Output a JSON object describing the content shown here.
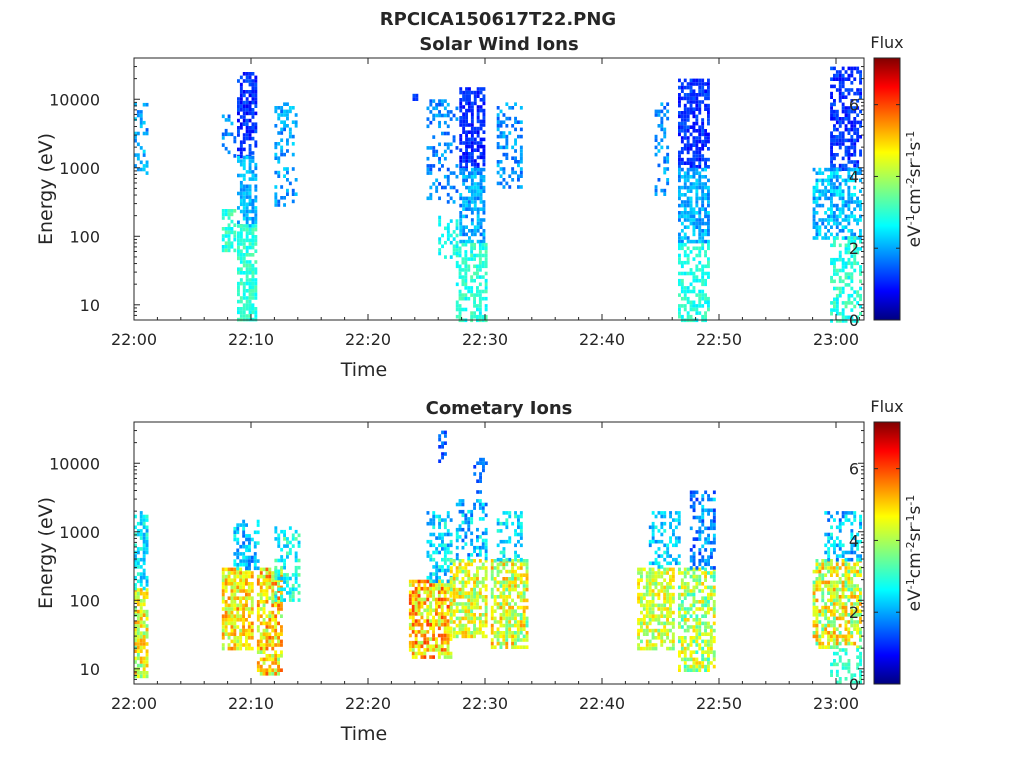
{
  "figure_title": "RPCICA150617T22.PNG",
  "colors": {
    "axis": "#262626",
    "background": "#ffffff"
  },
  "chart_data": [
    {
      "type": "heatmap",
      "title": "Solar Wind Ions",
      "xlabel": "Time",
      "ylabel": "Energy (eV)",
      "x_ticks": [
        "22:00",
        "22:10",
        "22:20",
        "22:30",
        "22:40",
        "22:50",
        "23:00"
      ],
      "xlim_minutes": [
        0,
        62
      ],
      "y_scale": "log",
      "ylim": [
        6,
        40000
      ],
      "y_ticks": [
        10,
        100,
        1000,
        10000
      ],
      "y_tick_labels": [
        "10",
        "100",
        "1000",
        "10000"
      ],
      "colorbar": {
        "label": "Flux",
        "unit": "eV-1cm-2sr-1s-1",
        "range": [
          0,
          7.3
        ],
        "ticks": [
          "0",
          "2",
          "4",
          "6"
        ],
        "colormap": "jet"
      },
      "grid": false,
      "clusters": [
        {
          "t": [
            0.0,
            1.0
          ],
          "e": [
            800,
            10000
          ],
          "v": [
            1.6,
            2.6
          ],
          "density": 0.35
        },
        {
          "t": [
            7.5,
            8.5
          ],
          "e": [
            60,
            250
          ],
          "v": [
            2.6,
            3.5
          ],
          "density": 0.7
        },
        {
          "t": [
            7.5,
            8.5
          ],
          "e": [
            1500,
            6000
          ],
          "v": [
            1.5,
            2.3
          ],
          "density": 0.3
        },
        {
          "t": [
            8.8,
            10.5
          ],
          "e": [
            1500,
            25000
          ],
          "v": [
            0.8,
            1.6
          ],
          "density": 0.65
        },
        {
          "t": [
            8.8,
            10.5
          ],
          "e": [
            150,
            1500
          ],
          "v": [
            1.8,
            2.6
          ],
          "density": 0.6
        },
        {
          "t": [
            8.8,
            10.5
          ],
          "e": [
            6,
            150
          ],
          "v": [
            2.7,
            3.4
          ],
          "density": 0.75
        },
        {
          "t": [
            12.0,
            13.8
          ],
          "e": [
            300,
            9000
          ],
          "v": [
            1.6,
            2.5
          ],
          "density": 0.35
        },
        {
          "t": [
            23.8,
            24.2
          ],
          "e": [
            10000,
            12000
          ],
          "v": [
            1.2,
            1.6
          ],
          "density": 0.8
        },
        {
          "t": [
            25.0,
            27.5
          ],
          "e": [
            300,
            10000
          ],
          "v": [
            1.4,
            2.3
          ],
          "density": 0.3
        },
        {
          "t": [
            27.8,
            30.0
          ],
          "e": [
            1000,
            15000
          ],
          "v": [
            0.8,
            1.5
          ],
          "density": 0.7
        },
        {
          "t": [
            27.8,
            30.0
          ],
          "e": [
            80,
            1000
          ],
          "v": [
            1.6,
            2.5
          ],
          "density": 0.7
        },
        {
          "t": [
            27.5,
            30.0
          ],
          "e": [
            6,
            80
          ],
          "v": [
            2.6,
            3.4
          ],
          "density": 0.6
        },
        {
          "t": [
            26.0,
            27.5
          ],
          "e": [
            50,
            200
          ],
          "v": [
            2.4,
            3.2
          ],
          "density": 0.4
        },
        {
          "t": [
            31.0,
            33.0
          ],
          "e": [
            500,
            9000
          ],
          "v": [
            1.5,
            2.4
          ],
          "density": 0.35
        },
        {
          "t": [
            44.5,
            45.5
          ],
          "e": [
            400,
            9000
          ],
          "v": [
            1.5,
            2.4
          ],
          "density": 0.35
        },
        {
          "t": [
            46.5,
            49.0
          ],
          "e": [
            1000,
            20000
          ],
          "v": [
            0.9,
            1.6
          ],
          "density": 0.7
        },
        {
          "t": [
            46.5,
            49.0
          ],
          "e": [
            80,
            1000
          ],
          "v": [
            1.7,
            2.6
          ],
          "density": 0.65
        },
        {
          "t": [
            46.5,
            49.0
          ],
          "e": [
            6,
            80
          ],
          "v": [
            2.6,
            3.3
          ],
          "density": 0.55
        },
        {
          "t": [
            59.5,
            62.0
          ],
          "e": [
            1000,
            30000
          ],
          "v": [
            0.9,
            1.6
          ],
          "density": 0.6
        },
        {
          "t": [
            58.0,
            62.0
          ],
          "e": [
            100,
            1000
          ],
          "v": [
            1.7,
            2.8
          ],
          "density": 0.55
        },
        {
          "t": [
            59.5,
            62.0
          ],
          "e": [
            6,
            100
          ],
          "v": [
            2.6,
            3.4
          ],
          "density": 0.5
        }
      ]
    },
    {
      "type": "heatmap",
      "title": "Cometary Ions",
      "xlabel": "Time",
      "ylabel": "Energy (eV)",
      "x_ticks": [
        "22:00",
        "22:10",
        "22:20",
        "22:30",
        "22:40",
        "22:50",
        "23:00"
      ],
      "xlim_minutes": [
        0,
        62
      ],
      "y_scale": "log",
      "ylim": [
        6,
        40000
      ],
      "y_ticks": [
        10,
        100,
        1000,
        10000
      ],
      "y_tick_labels": [
        "10",
        "100",
        "1000",
        "10000"
      ],
      "colorbar": {
        "label": "Flux",
        "unit": "eV-1cm-2sr-1s-1",
        "range": [
          0,
          7.3
        ],
        "ticks": [
          "0",
          "2",
          "4",
          "6"
        ],
        "colormap": "jet"
      },
      "grid": false,
      "clusters": [
        {
          "t": [
            0.0,
            1.2
          ],
          "e": [
            8,
            150
          ],
          "v": [
            3.4,
            5.4
          ],
          "density": 0.8
        },
        {
          "t": [
            0.0,
            1.2
          ],
          "e": [
            150,
            2000
          ],
          "v": [
            2.0,
            3.2
          ],
          "density": 0.5
        },
        {
          "t": [
            7.5,
            10.0
          ],
          "e": [
            20,
            300
          ],
          "v": [
            3.8,
            5.6
          ],
          "density": 0.75
        },
        {
          "t": [
            8.5,
            10.5
          ],
          "e": [
            300,
            1500
          ],
          "v": [
            1.6,
            3.0
          ],
          "density": 0.5
        },
        {
          "t": [
            10.5,
            12.5
          ],
          "e": [
            8,
            300
          ],
          "v": [
            3.6,
            5.8
          ],
          "density": 0.75
        },
        {
          "t": [
            12.0,
            14.0
          ],
          "e": [
            100,
            1200
          ],
          "v": [
            2.2,
            3.6
          ],
          "density": 0.5
        },
        {
          "t": [
            23.5,
            27.0
          ],
          "e": [
            15,
            200
          ],
          "v": [
            3.8,
            6.0
          ],
          "density": 0.75
        },
        {
          "t": [
            25.0,
            27.0
          ],
          "e": [
            200,
            2000
          ],
          "v": [
            1.8,
            3.2
          ],
          "density": 0.5
        },
        {
          "t": [
            27.0,
            30.0
          ],
          "e": [
            30,
            400
          ],
          "v": [
            3.4,
            5.2
          ],
          "density": 0.7
        },
        {
          "t": [
            27.5,
            30.0
          ],
          "e": [
            400,
            3000
          ],
          "v": [
            1.6,
            3.0
          ],
          "density": 0.45
        },
        {
          "t": [
            26.0,
            26.5
          ],
          "e": [
            10000,
            30000
          ],
          "v": [
            1.2,
            2.0
          ],
          "density": 0.4
        },
        {
          "t": [
            29.0,
            30.0
          ],
          "e": [
            4000,
            12000
          ],
          "v": [
            1.2,
            2.0
          ],
          "density": 0.35
        },
        {
          "t": [
            30.5,
            33.5
          ],
          "e": [
            20,
            400
          ],
          "v": [
            3.2,
            5.4
          ],
          "density": 0.7
        },
        {
          "t": [
            31.0,
            33.0
          ],
          "e": [
            400,
            2000
          ],
          "v": [
            2.0,
            3.2
          ],
          "density": 0.45
        },
        {
          "t": [
            43.0,
            46.0
          ],
          "e": [
            20,
            300
          ],
          "v": [
            3.4,
            5.0
          ],
          "density": 0.7
        },
        {
          "t": [
            44.0,
            46.5
          ],
          "e": [
            300,
            2000
          ],
          "v": [
            1.8,
            3.0
          ],
          "density": 0.4
        },
        {
          "t": [
            46.5,
            49.5
          ],
          "e": [
            10,
            300
          ],
          "v": [
            3.0,
            5.0
          ],
          "density": 0.65
        },
        {
          "t": [
            47.5,
            49.5
          ],
          "e": [
            300,
            4000
          ],
          "v": [
            1.2,
            2.6
          ],
          "density": 0.45
        },
        {
          "t": [
            58.0,
            62.0
          ],
          "e": [
            20,
            400
          ],
          "v": [
            3.2,
            5.4
          ],
          "density": 0.7
        },
        {
          "t": [
            59.0,
            62.0
          ],
          "e": [
            400,
            2000
          ],
          "v": [
            1.6,
            3.0
          ],
          "density": 0.45
        },
        {
          "t": [
            59.5,
            62.0
          ],
          "e": [
            6,
            20
          ],
          "v": [
            2.8,
            3.4
          ],
          "density": 0.4
        }
      ]
    }
  ]
}
